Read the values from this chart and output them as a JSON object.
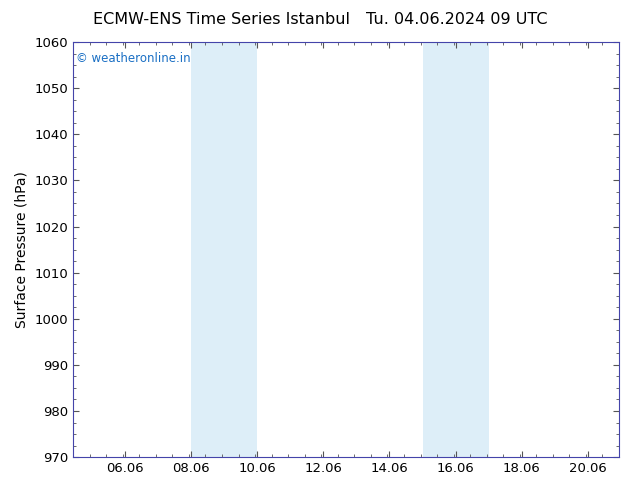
{
  "title_left": "ECMW-ENS Time Series Istanbul",
  "title_right": "Tu. 04.06.2024 09 UTC",
  "ylabel": "Surface Pressure (hPa)",
  "ylim": [
    970,
    1060
  ],
  "yticks": [
    970,
    980,
    990,
    1000,
    1010,
    1020,
    1030,
    1040,
    1050,
    1060
  ],
  "xlim_start": 4.5,
  "xlim_end": 21.0,
  "xtick_positions": [
    6.06,
    8.06,
    10.06,
    12.06,
    14.06,
    16.06,
    18.06,
    20.06
  ],
  "xtick_labels": [
    "06.06",
    "08.06",
    "10.06",
    "12.06",
    "14.06",
    "16.06",
    "18.06",
    "20.06"
  ],
  "shaded_bands": [
    {
      "x_start": 8.06,
      "x_end": 10.06
    },
    {
      "x_start": 15.06,
      "x_end": 17.06
    }
  ],
  "band_color": "#ddeef8",
  "background_color": "#ffffff",
  "border_color": "#4444aa",
  "watermark_text": "© weatheronline.in",
  "watermark_color": "#1a6fc4",
  "title_fontsize": 11.5,
  "ylabel_fontsize": 10,
  "tick_fontsize": 9.5,
  "watermark_fontsize": 8.5
}
